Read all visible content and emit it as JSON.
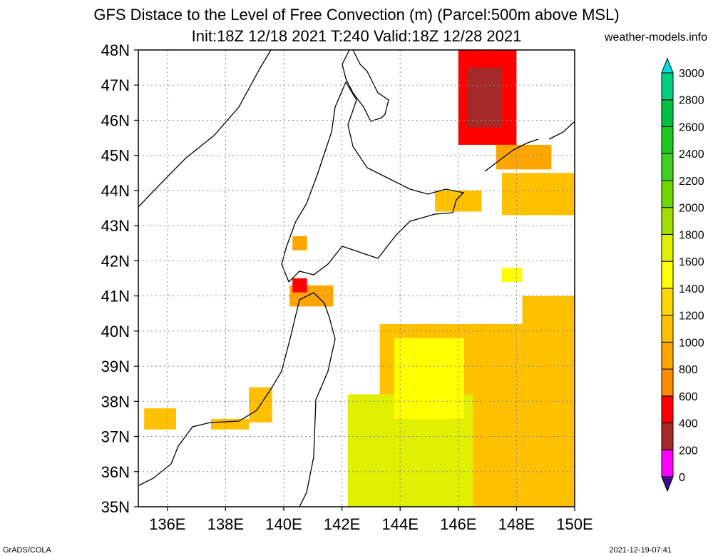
{
  "header": {
    "title_line1": "GFS Distace to the Level of Free Convection (m) (Parcel:500m above MSL)",
    "title_line2": "Init:18Z 12/18 2021 T:240 Valid:18Z 12/28 2021",
    "site": "weather-models.info"
  },
  "footer": {
    "left": "GrADS/COLA",
    "right": "2021-12-19-07:41"
  },
  "map": {
    "lon_range": [
      135,
      150
    ],
    "lat_range": [
      35,
      48
    ],
    "lon_ticks": [
      {
        "value": 136,
        "label": "136E"
      },
      {
        "value": 138,
        "label": "138E"
      },
      {
        "value": 140,
        "label": "140E"
      },
      {
        "value": 142,
        "label": "142E"
      },
      {
        "value": 144,
        "label": "144E"
      },
      {
        "value": 146,
        "label": "146E"
      },
      {
        "value": 148,
        "label": "148E"
      },
      {
        "value": 150,
        "label": "150E"
      }
    ],
    "lat_ticks": [
      {
        "value": 35,
        "label": "35N"
      },
      {
        "value": 36,
        "label": "36N"
      },
      {
        "value": 37,
        "label": "37N"
      },
      {
        "value": 38,
        "label": "38N"
      },
      {
        "value": 39,
        "label": "39N"
      },
      {
        "value": 40,
        "label": "40N"
      },
      {
        "value": 41,
        "label": "41N"
      },
      {
        "value": 42,
        "label": "42N"
      },
      {
        "value": 43,
        "label": "43N"
      },
      {
        "value": 44,
        "label": "44N"
      },
      {
        "value": 45,
        "label": "45N"
      },
      {
        "value": 46,
        "label": "46N"
      },
      {
        "value": 47,
        "label": "47N"
      },
      {
        "value": 48,
        "label": "48N"
      }
    ],
    "grid": true
  },
  "colorbar": {
    "levels": [
      {
        "value": 0,
        "label": "0",
        "color": "#ff00ff"
      },
      {
        "value": 200,
        "label": "200",
        "color": "#a52a2a"
      },
      {
        "value": 400,
        "label": "400",
        "color": "#ff0000"
      },
      {
        "value": 600,
        "label": "600",
        "color": "#ff8c00"
      },
      {
        "value": 800,
        "label": "800",
        "color": "#ffa500"
      },
      {
        "value": 1000,
        "label": "1000",
        "color": "#ffc000"
      },
      {
        "value": 1200,
        "label": "1200",
        "color": "#ffd700"
      },
      {
        "value": 1400,
        "label": "1400",
        "color": "#ffff00"
      },
      {
        "value": 1600,
        "label": "1600",
        "color": "#e0f000"
      },
      {
        "value": 1800,
        "label": "1800",
        "color": "#a0e000"
      },
      {
        "value": 2000,
        "label": "2000",
        "color": "#70d800"
      },
      {
        "value": 2200,
        "label": "2200",
        "color": "#40d020"
      },
      {
        "value": 2400,
        "label": "2400",
        "color": "#20c820"
      },
      {
        "value": 2600,
        "label": "2600",
        "color": "#00c040"
      },
      {
        "value": 2800,
        "label": "2800",
        "color": "#00d080"
      },
      {
        "value": 3000,
        "label": "3000",
        "color": "#00e0c0"
      }
    ],
    "below_color": "#3a0d8c",
    "above_color": "#00e0e0"
  },
  "field_regions": [
    {
      "lon0": 143.3,
      "lon1": 150,
      "lat0": 35,
      "lat1": 40.2,
      "value": 1100
    },
    {
      "lon0": 142.2,
      "lon1": 146.5,
      "lat0": 35,
      "lat1": 38.2,
      "value": 1750
    },
    {
      "lon0": 143.8,
      "lon1": 146.2,
      "lat0": 37.5,
      "lat1": 39.8,
      "value": 1500
    },
    {
      "lon0": 148.2,
      "lon1": 150,
      "lat0": 38.5,
      "lat1": 41.0,
      "value": 1000
    },
    {
      "lon0": 146.0,
      "lon1": 148.0,
      "lat0": 45.3,
      "lat1": 48.0,
      "value": 400
    },
    {
      "lon0": 146.3,
      "lon1": 147.5,
      "lat0": 45.8,
      "lat1": 47.5,
      "value": 250
    },
    {
      "lon0": 147.5,
      "lon1": 150,
      "lat0": 43.3,
      "lat1": 44.5,
      "value": 1100
    },
    {
      "lon0": 145.2,
      "lon1": 146.8,
      "lat0": 43.4,
      "lat1": 44.0,
      "value": 1000
    },
    {
      "lon0": 147.3,
      "lon1": 149.2,
      "lat0": 44.6,
      "lat1": 45.3,
      "value": 900
    },
    {
      "lon0": 140.2,
      "lon1": 141.7,
      "lat0": 40.7,
      "lat1": 41.3,
      "value": 950
    },
    {
      "lon0": 140.3,
      "lon1": 140.8,
      "lat0": 41.1,
      "lat1": 41.5,
      "value": 500
    },
    {
      "lon0": 140.3,
      "lon1": 140.8,
      "lat0": 42.3,
      "lat1": 42.7,
      "value": 900
    },
    {
      "lon0": 135.2,
      "lon1": 136.3,
      "lat0": 37.2,
      "lat1": 37.8,
      "value": 1000
    },
    {
      "lon0": 137.5,
      "lon1": 138.8,
      "lat0": 37.2,
      "lat1": 37.5,
      "value": 1000
    },
    {
      "lon0": 138.8,
      "lon1": 139.6,
      "lat0": 37.4,
      "lat1": 38.4,
      "value": 1100
    },
    {
      "lon0": 147.5,
      "lon1": 148.2,
      "lat0": 41.4,
      "lat1": 41.8,
      "value": 1550
    }
  ]
}
